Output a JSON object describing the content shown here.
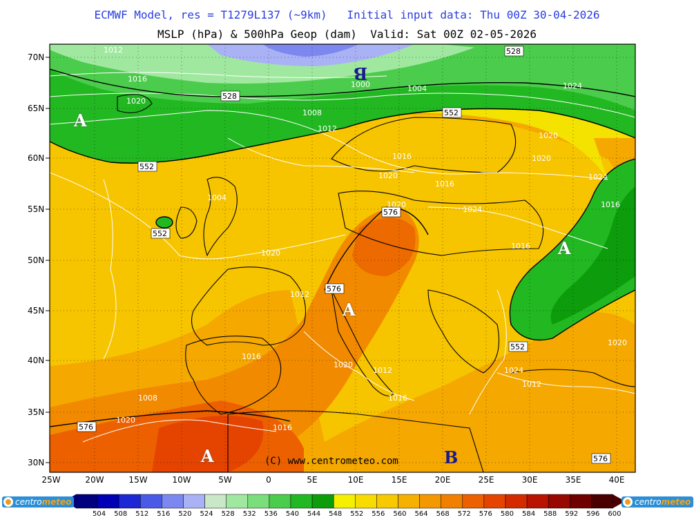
{
  "header": {
    "line1": "ECMWF Model, res = T1279L137 (~9km)   Initial input data: Thu 00Z 30-04-2026",
    "line2": "MSLP (hPa) & 500hPa Geop (dam)  Valid: Sat 00Z 02-05-2026"
  },
  "map": {
    "lat_labels": [
      "70N",
      "65N",
      "60N",
      "55N",
      "50N",
      "45N",
      "40N",
      "35N",
      "30N"
    ],
    "lon_labels": [
      "25W",
      "20W",
      "15W",
      "10W",
      "5W",
      "0",
      "5E",
      "10E",
      "15E",
      "20E",
      "25E",
      "30E",
      "35E",
      "40E"
    ],
    "pressure_centers": [
      {
        "label": "A",
        "color": "#ffffff"
      },
      {
        "label": "A",
        "color": "#ffffff"
      },
      {
        "label": "A",
        "color": "#ffffff"
      },
      {
        "label": "A",
        "color": "#ffffff"
      },
      {
        "label": "B",
        "color": "#1a1a8a"
      },
      {
        "label": "B",
        "color": "#1a1a8a"
      }
    ],
    "isobar_labels": [
      "1012",
      "1016",
      "1020",
      "1008",
      "1000",
      "1004",
      "1024",
      "1020",
      "1020",
      "1024",
      "1016",
      "1020",
      "1024",
      "1020",
      "1020",
      "1016",
      "1012",
      "1020",
      "1016",
      "1012",
      "1008",
      "1004",
      "1016",
      "1012",
      "1020",
      "1024",
      "1020",
      "1016",
      "1012",
      "1016",
      "1016"
    ],
    "geop_labels": [
      "528",
      "528",
      "552",
      "552",
      "552",
      "576",
      "576",
      "552",
      "576",
      "576"
    ],
    "copyright": "(C) www.centrometeo.com"
  },
  "legend": {
    "values": [
      "504",
      "508",
      "512",
      "516",
      "520",
      "524",
      "528",
      "532",
      "536",
      "540",
      "544",
      "548",
      "552",
      "556",
      "560",
      "564",
      "568",
      "572",
      "576",
      "580",
      "584",
      "588",
      "592",
      "596",
      "600"
    ],
    "colors": [
      "#00007f",
      "#0000b4",
      "#1c28d4",
      "#4a5ae6",
      "#7c88f0",
      "#aab2f6",
      "#c8e8c8",
      "#a0e8a0",
      "#7ade7a",
      "#4ccc4c",
      "#22b822",
      "#0c9c0c",
      "#f4f000",
      "#f8dc00",
      "#f8c800",
      "#f6b000",
      "#f49800",
      "#f28000",
      "#ec6000",
      "#e44400",
      "#d42a00",
      "#b81400",
      "#960800",
      "#700000",
      "#4a0000"
    ],
    "brand_left": "meteo",
    "brand_right": "meteo",
    "brand_prefix": "centro"
  }
}
